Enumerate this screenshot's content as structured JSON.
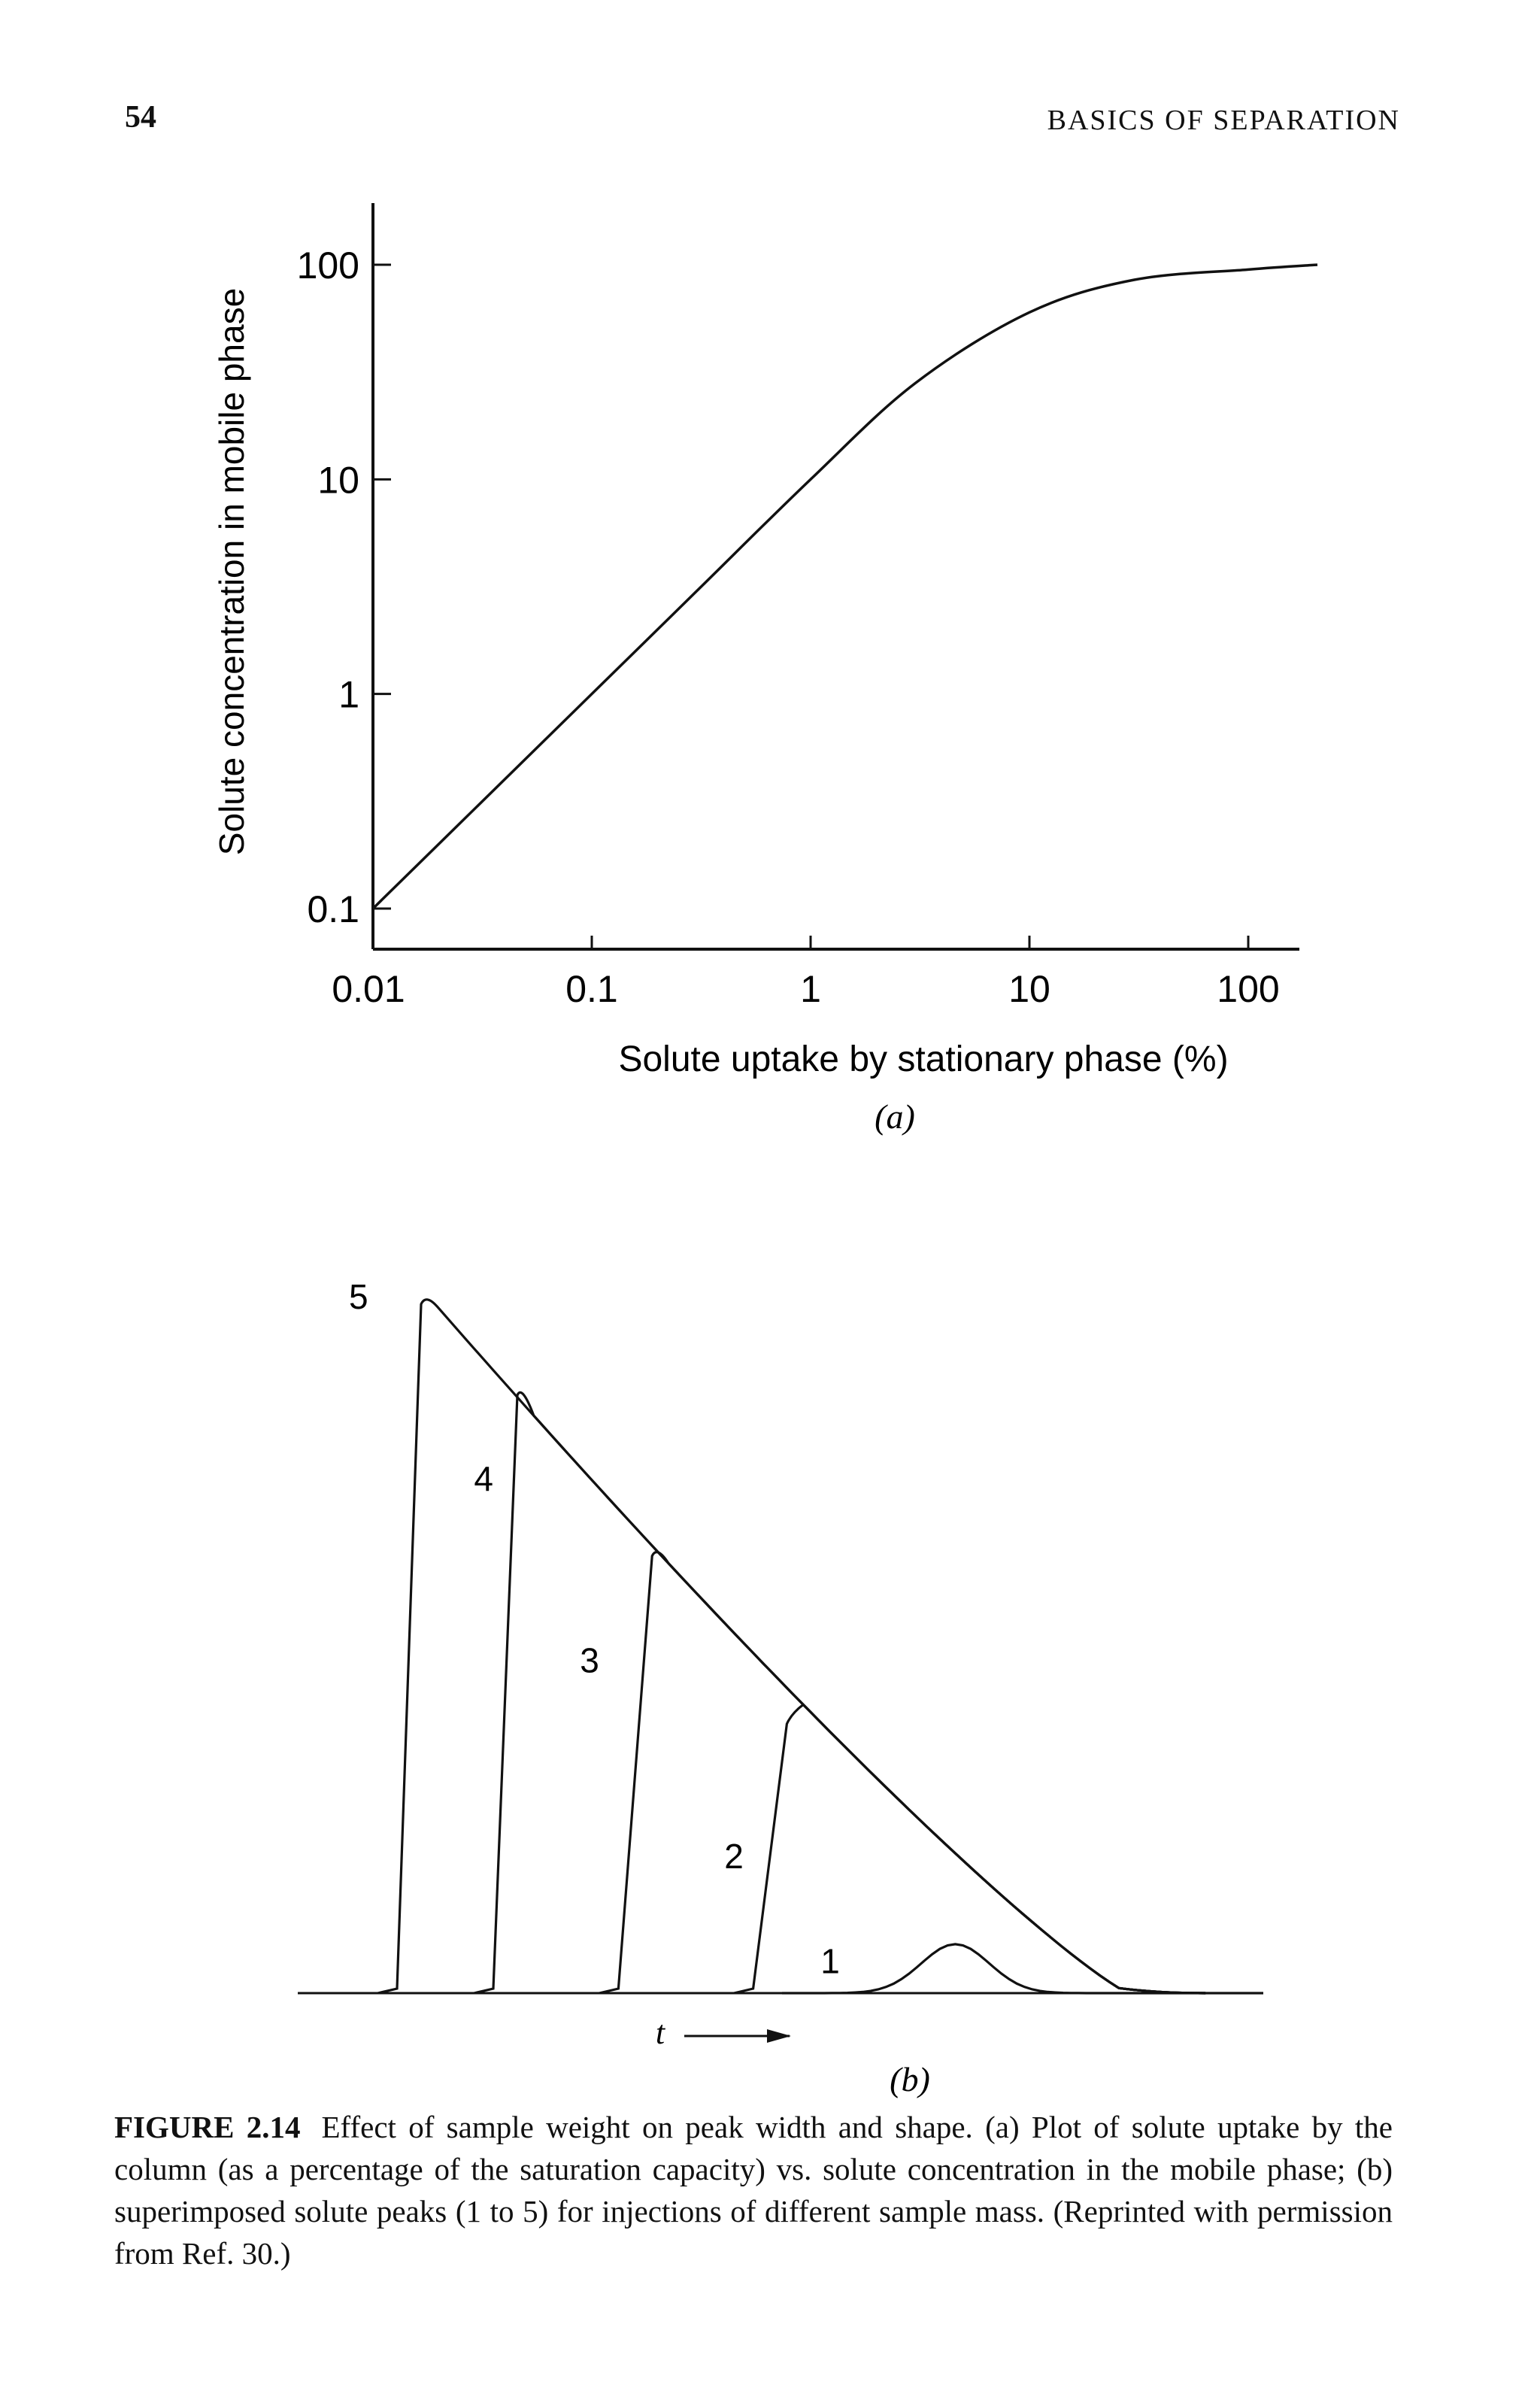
{
  "page": {
    "number": "54",
    "running_head": "BASICS OF SEPARATION"
  },
  "caption": {
    "label": "FIGURE 2.14",
    "text": "Effect of sample weight on peak width and shape. (a) Plot of solute uptake by the column (as a percentage of the saturation capacity) vs. solute concentration in the mobile phase; (b) superimposed solute peaks (1 to 5) for injections of different sample mass. (Reprinted with permission from Ref. 30.)"
  },
  "chart_data": [
    {
      "type": "line",
      "panel_label": "(a)",
      "xlabel": "Solute uptake by stationary phase (%)",
      "ylabel": "Solute concentration in mobile phase",
      "x_scale": "log",
      "y_scale": "log",
      "xlim": [
        0.01,
        100
      ],
      "ylim": [
        0.1,
        100
      ],
      "x_ticks": [
        "0.01",
        "0.1",
        "1",
        "10",
        "100"
      ],
      "y_ticks": [
        "0.1",
        "1",
        "10",
        "100"
      ],
      "grid": false,
      "series": [
        {
          "x": [
            0.01,
            0.03,
            0.1,
            0.3,
            1,
            3,
            10,
            30,
            100,
            300
          ],
          "y": [
            0.1,
            0.3,
            1,
            3,
            10,
            28,
            60,
            85,
            95,
            100
          ]
        }
      ]
    },
    {
      "type": "line",
      "panel_label": "(b)",
      "xlabel": "t",
      "x_axis_arrow": "right",
      "curve_labels": [
        "5",
        "4",
        "3",
        "2",
        "1"
      ],
      "description_peaks": "superimposed solute peaks 1 to 5 sharing a common tailing envelope",
      "series": [
        {
          "label": "5",
          "peak_order": 5,
          "start_t": 0.1,
          "rise_t": 0.13,
          "height": 1.0
        },
        {
          "label": "4",
          "peak_order": 4,
          "start_t": 0.2,
          "rise_t": 0.23,
          "height": 0.87
        },
        {
          "label": "3",
          "peak_order": 3,
          "start_t": 0.33,
          "rise_t": 0.37,
          "height": 0.64
        },
        {
          "label": "2",
          "peak_order": 2,
          "start_t": 0.47,
          "rise_t": 0.51,
          "height": 0.4
        },
        {
          "label": "1",
          "peak_order": 1,
          "start_t": 0.52,
          "rise_t": 0.67,
          "height": 0.07
        }
      ]
    }
  ]
}
